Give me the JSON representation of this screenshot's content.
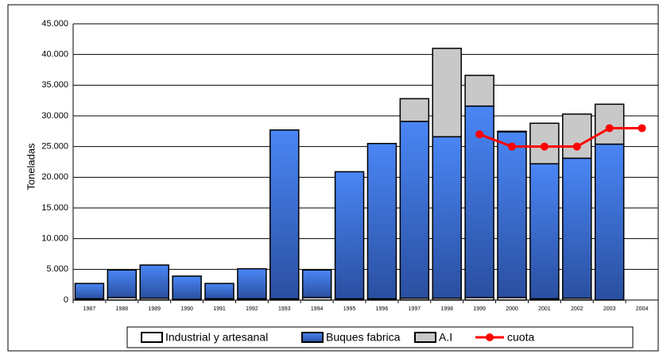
{
  "chart_data": {
    "type": "bar",
    "stacked": true,
    "y_label": "Toneladas",
    "categories": [
      "1987",
      "1988",
      "1989",
      "1990",
      "1991",
      "1992",
      "1993",
      "1994",
      "1995",
      "1996",
      "1997",
      "1998",
      "1999",
      "2000",
      "2001",
      "2002",
      "2003",
      "2004"
    ],
    "series": [
      {
        "name": "Industrial y artesanal",
        "type": "bar",
        "color": "#ffffff",
        "values": [
          200,
          400,
          300,
          100,
          200,
          200,
          200,
          400,
          200,
          200,
          300,
          300,
          400,
          400,
          200,
          300,
          0,
          0
        ]
      },
      {
        "name": "Buques fabrica",
        "type": "bar",
        "color": "#3a6fe0",
        "values": [
          2500,
          4500,
          5400,
          3800,
          2500,
          4900,
          27500,
          4500,
          20700,
          25300,
          28800,
          26300,
          31200,
          27000,
          22000,
          22800,
          25400,
          0
        ]
      },
      {
        "name": "A.I",
        "type": "bar",
        "color": "#c8c8c8",
        "values": [
          0,
          0,
          0,
          0,
          0,
          0,
          0,
          0,
          0,
          0,
          3700,
          14400,
          5000,
          100,
          6600,
          7200,
          6500,
          0
        ]
      },
      {
        "name": "cuota",
        "type": "line",
        "color": "#ff0000",
        "values": [
          null,
          null,
          null,
          null,
          null,
          null,
          null,
          null,
          null,
          null,
          null,
          null,
          27000,
          25000,
          25000,
          25000,
          28000,
          28000
        ]
      }
    ],
    "ylim": [
      0,
      45000
    ],
    "yticks": [
      0,
      {
        "value": 5000,
        "label": "5.000"
      },
      {
        "value": 10000,
        "label": "10.000"
      },
      {
        "value": 15000,
        "label": "15.000"
      },
      {
        "value": 20000,
        "label": "20.000"
      },
      {
        "value": 25000,
        "label": "25.000"
      },
      {
        "value": 30000,
        "label": "30.000"
      },
      {
        "value": 35000,
        "label": "35.000"
      },
      {
        "value": 40000,
        "label": "40.000"
      },
      {
        "value": 45000,
        "label": "45.000"
      }
    ],
    "grid": true
  }
}
